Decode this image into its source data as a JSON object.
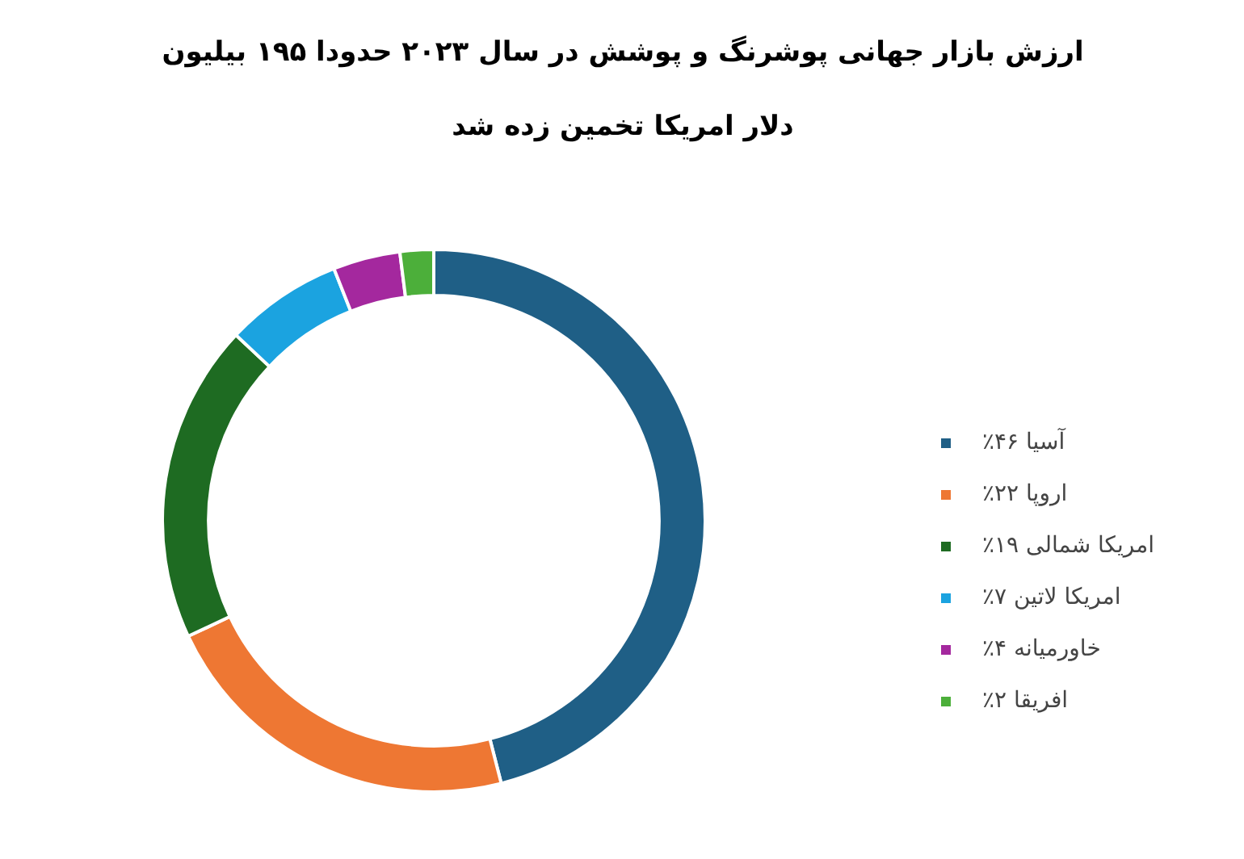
{
  "chart_data": {
    "type": "donut",
    "title": "ارزش بازار جهانی پوشرنگ و پوشش در سال ۲۰۲۳ حدودا ۱۹۵ بیلیون دلار امریکا تخمین زده شد",
    "categories": [
      "آسیا ۴۶٪",
      "اروپا ۲۲٪",
      "امریکا شمالی ۱۹٪",
      "امریکا لاتین ۷٪",
      "خاورمیانه ۴٪",
      "افریقا ۲٪"
    ],
    "values": [
      46,
      22,
      19,
      7,
      4,
      2
    ],
    "colors": [
      "#1f5f86",
      "#ee7733",
      "#1e6b22",
      "#1ba3e0",
      "#a4289e",
      "#4caf3a"
    ],
    "legend": "right"
  }
}
